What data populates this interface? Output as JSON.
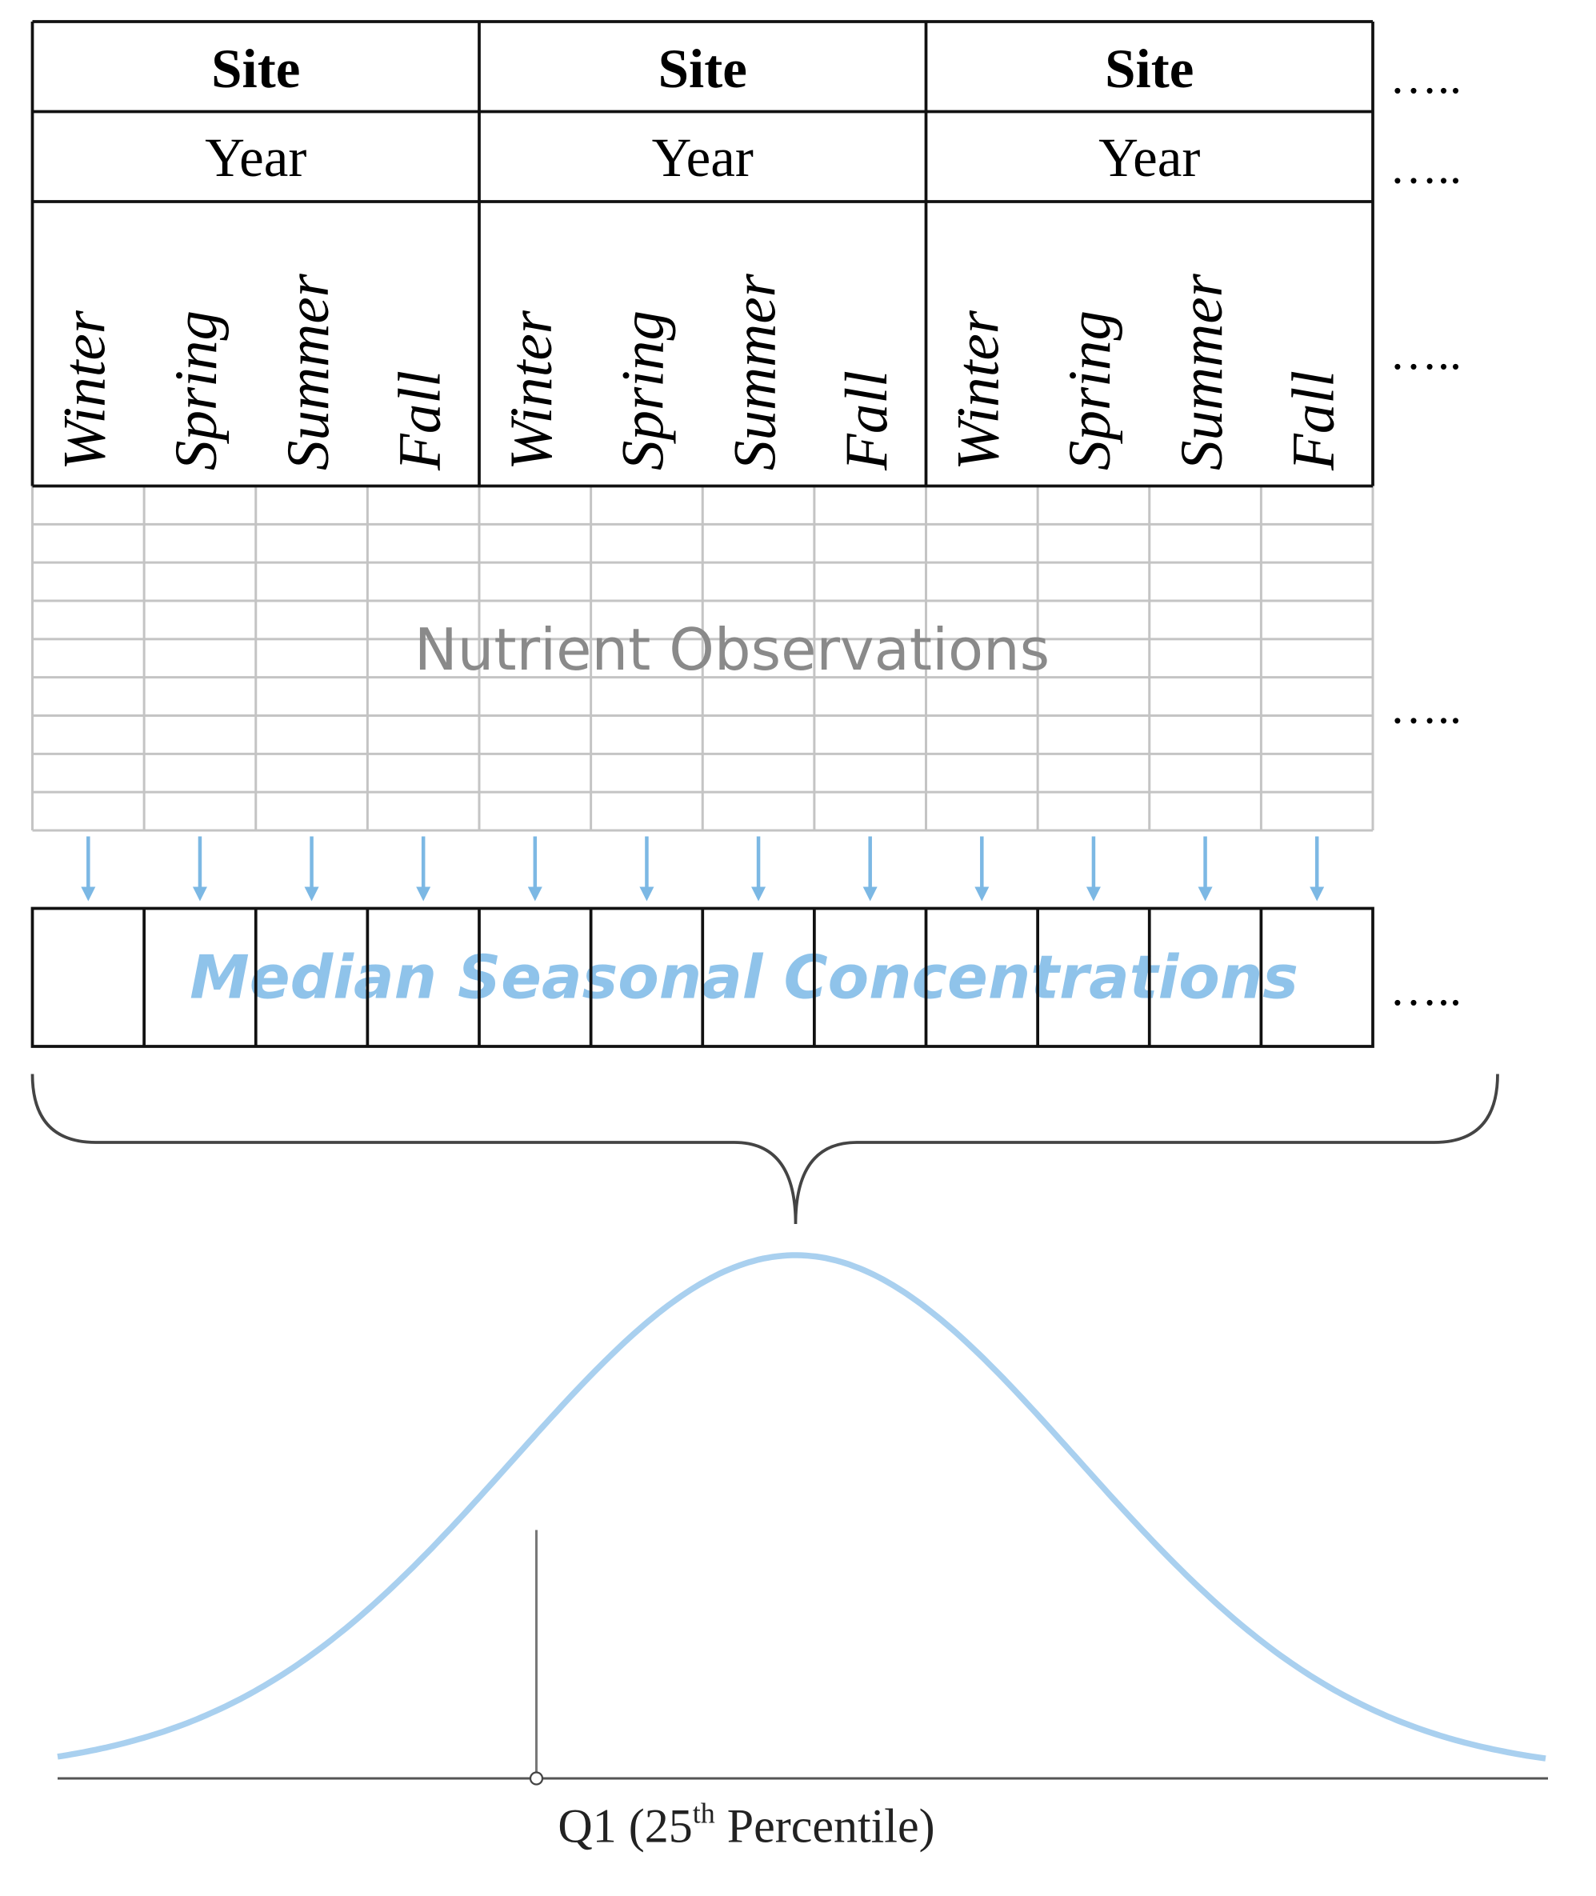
{
  "columns": [
    {
      "site": "Site",
      "year": "Year",
      "seasons": [
        "Winter",
        "Spring",
        "Summer",
        "Fall"
      ]
    },
    {
      "site": "Site",
      "year": "Year",
      "seasons": [
        "Winter",
        "Spring",
        "Summer",
        "Fall"
      ]
    },
    {
      "site": "Site",
      "year": "Year",
      "seasons": [
        "Winter",
        "Spring",
        "Summer",
        "Fall"
      ]
    }
  ],
  "row_ellipsis": [
    "…..",
    "…..",
    "…..",
    "…..",
    "….."
  ],
  "observations_label": "Nutrient Observations",
  "median_label": "Median Seasonal Concentrations",
  "q1_label": {
    "main": "Q1 (25",
    "superscript": "th",
    "rest": " Percentile)"
  }
}
